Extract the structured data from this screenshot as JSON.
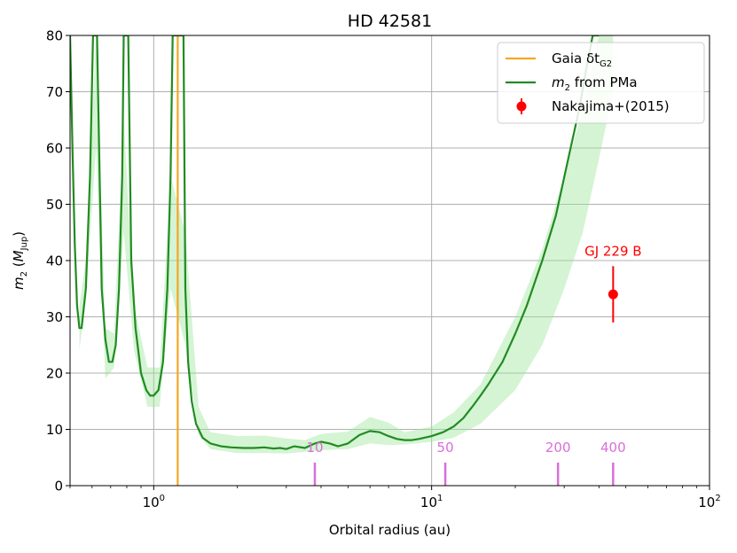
{
  "chart_data": {
    "type": "line",
    "title": "HD 42581",
    "xlabel": "Orbital radius (au)",
    "ylabel_main": "m",
    "ylabel_sub": "2",
    "ylabel_unit_open": " (",
    "ylabel_unit_main": "M",
    "ylabel_unit_sub": "Jup",
    "ylabel_unit_close": ")",
    "xscale": "log",
    "xlim": [
      0.5,
      100
    ],
    "ylim": [
      0,
      80
    ],
    "grid": true,
    "legend_placement": "top-right",
    "x_ticks": [
      {
        "value": 1,
        "base": "10",
        "exp": "0"
      },
      {
        "value": 10,
        "base": "10",
        "exp": "1"
      },
      {
        "value": 100,
        "base": "10",
        "exp": "2"
      }
    ],
    "y_ticks": [
      "0",
      "10",
      "20",
      "30",
      "40",
      "50",
      "60",
      "70",
      "80"
    ],
    "legend": [
      {
        "label": "Gaia δt",
        "sub": "G2",
        "color": "#f5a623",
        "kind": "line"
      },
      {
        "label": "m",
        "sub": "2",
        "suffix": " from PMa",
        "color": "#228b22",
        "kind": "line"
      },
      {
        "label": "Nakajima+(2015)",
        "color": "#ff0000",
        "kind": "point"
      }
    ],
    "series": [
      {
        "name": "m2 from PMa",
        "color": "#228b22",
        "x": [
          0.5,
          0.51,
          0.52,
          0.53,
          0.54,
          0.55,
          0.57,
          0.59,
          0.605,
          0.615,
          0.625,
          0.65,
          0.67,
          0.69,
          0.71,
          0.73,
          0.75,
          0.77,
          0.78,
          0.8,
          0.81,
          0.83,
          0.86,
          0.9,
          0.94,
          0.97,
          1.0,
          1.04,
          1.08,
          1.12,
          1.15,
          1.17,
          1.19,
          1.2,
          1.28,
          1.3,
          1.33,
          1.37,
          1.42,
          1.5,
          1.6,
          1.75,
          1.9,
          2.1,
          2.3,
          2.5,
          2.7,
          2.85,
          3.0,
          3.2,
          3.5,
          3.8,
          4.0,
          4.3,
          4.6,
          5.0,
          5.5,
          6.0,
          6.5,
          7.0,
          7.5,
          8.0,
          8.5,
          9.0,
          10.0,
          11.0,
          12.0,
          13.0,
          14.0,
          15.0,
          16.0,
          18.0,
          20.0,
          22.0,
          25.0,
          28.0,
          31.0,
          34.0,
          36.0,
          38.0,
          40.0
        ],
        "y": [
          80,
          60,
          43,
          32,
          28,
          28,
          35,
          55,
          80,
          80,
          80,
          35,
          26,
          22,
          22,
          25,
          35,
          55,
          80,
          80,
          80,
          40,
          28,
          20,
          17,
          16,
          16,
          17,
          22,
          35,
          55,
          80,
          80,
          80,
          80,
          35,
          22,
          15,
          11,
          8.5,
          7.5,
          7,
          6.8,
          6.7,
          6.7,
          6.8,
          6.6,
          6.7,
          6.5,
          7,
          6.7,
          7.5,
          7.8,
          7.5,
          7,
          7.5,
          9,
          9.7,
          9.5,
          8.8,
          8.3,
          8.1,
          8.1,
          8.3,
          8.8,
          9.5,
          10.5,
          12,
          14,
          16,
          18,
          22,
          27,
          32,
          40,
          48,
          58,
          67,
          74,
          80,
          80
        ]
      }
    ],
    "band": {
      "x": [
        0.54,
        0.57,
        0.62,
        0.67,
        0.72,
        0.78,
        0.85,
        0.95,
        1.05,
        1.15,
        1.3,
        1.45,
        1.6,
        2.0,
        2.5,
        3.0,
        3.5,
        4.0,
        5.0,
        6.0,
        7.0,
        8.0,
        10.0,
        12.0,
        15.0,
        20.0,
        25.0,
        30.0,
        35.0,
        40.0,
        45.0
      ],
      "lower": [
        24,
        33,
        60,
        19,
        21,
        45,
        24,
        14,
        14,
        35,
        25,
        9,
        6.5,
        5.8,
        5.8,
        5.7,
        6.0,
        6.3,
        6.5,
        7.5,
        7.2,
        7.3,
        7.8,
        8.5,
        11,
        17,
        25,
        35,
        45,
        58,
        70
      ],
      "upper": [
        32,
        40,
        80,
        28,
        27,
        65,
        32,
        21,
        21,
        55,
        45,
        14,
        9.5,
        8.8,
        8.9,
        8.4,
        8.1,
        9.2,
        9.6,
        12.2,
        11.2,
        9.5,
        10.5,
        13,
        18,
        30,
        42,
        55,
        67,
        80,
        80
      ]
    },
    "gaia_line": {
      "x": 1.22,
      "color": "#f5a623"
    },
    "point": {
      "name": "Nakajima+(2015)",
      "label": "GJ 229 B",
      "x": 45,
      "y": 34,
      "yerr": 5,
      "color": "#ff0000"
    },
    "period_markers": {
      "color": "#d86fd8",
      "items": [
        {
          "label": "10",
          "x": 3.8
        },
        {
          "label": "50",
          "x": 11.2
        },
        {
          "label": "200",
          "x": 28.5
        },
        {
          "label": "400",
          "x": 45
        }
      ]
    }
  }
}
